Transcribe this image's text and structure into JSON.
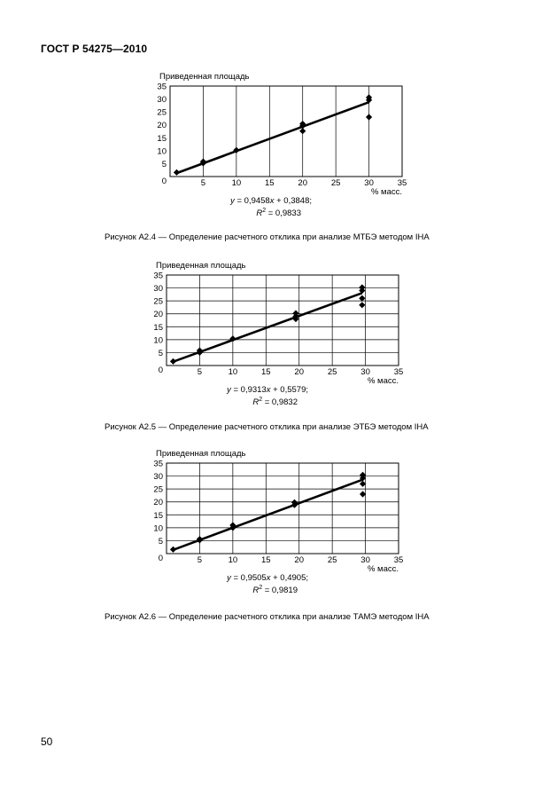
{
  "header": {
    "standard": "ГОСТ Р 54275—2010"
  },
  "page_number": "50",
  "chart_data": [
    {
      "type": "scatter",
      "ylabel": "Приведенная площадь",
      "xlabel": "% масс.",
      "xlim": [
        0,
        35
      ],
      "ylim": [
        0,
        35
      ],
      "xticks": [
        0,
        5,
        10,
        15,
        20,
        25,
        30,
        35
      ],
      "yticks": [
        5,
        10,
        15,
        20,
        25,
        30,
        35
      ],
      "grid": "vertical",
      "points": [
        {
          "x": 1,
          "y": 1.6
        },
        {
          "x": 5,
          "y": 5.2
        },
        {
          "x": 5,
          "y": 5.8
        },
        {
          "x": 10,
          "y": 10.2
        },
        {
          "x": 20,
          "y": 17.6
        },
        {
          "x": 20,
          "y": 19.6
        },
        {
          "x": 20,
          "y": 20.4
        },
        {
          "x": 30,
          "y": 23.0
        },
        {
          "x": 30,
          "y": 29.6
        },
        {
          "x": 30,
          "y": 30.6
        }
      ],
      "fit": {
        "x": [
          1,
          30
        ]
      },
      "equation_prefix": "y",
      "equation_rest": " = 0,9458",
      "equation_x": "x",
      "equation_tail": " + 0,3848;",
      "r2_label": "R",
      "r2_sup": "2",
      "r2_value": " = 0,9833",
      "caption": "Рисунок А2.4 — Определение расчетного отклика при анализе МТБЭ методом IHA"
    },
    {
      "type": "scatter",
      "ylabel": "Приведенная площадь",
      "xlabel": "% масс.",
      "xlim": [
        0,
        35
      ],
      "ylim": [
        0,
        35
      ],
      "xticks": [
        0,
        5,
        10,
        15,
        20,
        25,
        30,
        35
      ],
      "yticks": [
        5,
        10,
        15,
        20,
        25,
        30,
        35
      ],
      "grid": "both",
      "points": [
        {
          "x": 1,
          "y": 1.6
        },
        {
          "x": 5,
          "y": 5.0
        },
        {
          "x": 5,
          "y": 5.8
        },
        {
          "x": 10,
          "y": 10.4
        },
        {
          "x": 19.5,
          "y": 18.0
        },
        {
          "x": 19.5,
          "y": 19.0
        },
        {
          "x": 19.5,
          "y": 20.2
        },
        {
          "x": 29.5,
          "y": 23.4
        },
        {
          "x": 29.5,
          "y": 26.0
        },
        {
          "x": 29.5,
          "y": 29.0
        },
        {
          "x": 29.5,
          "y": 30.2
        }
      ],
      "fit": {
        "x": [
          1,
          29.5
        ]
      },
      "equation_prefix": "y",
      "equation_rest": " = 0,9313",
      "equation_x": "x",
      "equation_tail": " + 0,5579;",
      "r2_label": "R",
      "r2_sup": "2",
      "r2_value": " = 0,9832",
      "caption": "Рисунок А2.5 — Определение расчетного отклика при анализе ЭТБЭ  методом IHA"
    },
    {
      "type": "scatter",
      "ylabel": "Приведенная площадь",
      "xlabel": "% масс.",
      "xlim": [
        0,
        35
      ],
      "ylim": [
        0,
        35
      ],
      "xticks": [
        0,
        5,
        10,
        15,
        20,
        25,
        30,
        35
      ],
      "yticks": [
        5,
        10,
        15,
        20,
        25,
        30,
        35
      ],
      "grid": "both",
      "points": [
        {
          "x": 1,
          "y": 1.6
        },
        {
          "x": 5,
          "y": 5.2
        },
        {
          "x": 5,
          "y": 5.6
        },
        {
          "x": 10,
          "y": 10.0
        },
        {
          "x": 10,
          "y": 11.0
        },
        {
          "x": 19.3,
          "y": 18.8
        },
        {
          "x": 19.3,
          "y": 19.8
        },
        {
          "x": 29.6,
          "y": 23.0
        },
        {
          "x": 29.6,
          "y": 27.0
        },
        {
          "x": 29.6,
          "y": 29.2
        },
        {
          "x": 29.6,
          "y": 30.4
        }
      ],
      "fit": {
        "x": [
          1,
          29.6
        ]
      },
      "equation_prefix": "y",
      "equation_rest": " = 0,9505",
      "equation_x": "x",
      "equation_tail": " + 0,4905;",
      "r2_label": "R",
      "r2_sup": "2",
      "r2_value": " = 0,9819",
      "caption": "Рисунок А2.6 — Определение расчетного отклика при анализе ТАМЭ  методом IHA"
    }
  ]
}
